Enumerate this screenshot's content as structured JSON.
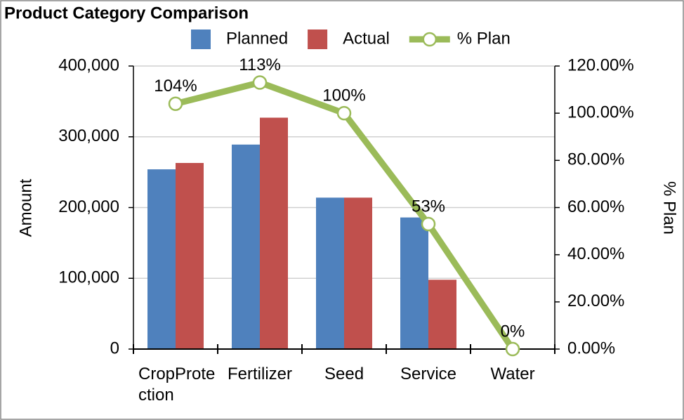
{
  "chart_data": {
    "type": "bar",
    "title": "Product Category Comparison",
    "categories": [
      "CropProtection",
      "Fertilizer",
      "Seed",
      "Service",
      "Water"
    ],
    "series": [
      {
        "name": "Planned",
        "color": "#4f81bd",
        "values": [
          254000,
          289000,
          214000,
          186000,
          500
        ]
      },
      {
        "name": "Actual",
        "color": "#c0504d",
        "values": [
          263000,
          327000,
          214000,
          98000,
          0
        ]
      },
      {
        "name": "% Plan",
        "type": "line",
        "axis": "y2",
        "color": "#9bbb59",
        "values": [
          104,
          113,
          100,
          53,
          0
        ],
        "value_labels": [
          "104%",
          "113%",
          "100%",
          "53%",
          "0%"
        ]
      }
    ],
    "ylabel": "Amount",
    "y2label": "% Plan",
    "ylim": [
      0,
      400000
    ],
    "yticks": [
      0,
      {
        "value": 100000,
        "label": "100,000"
      },
      {
        "value": 200000,
        "label": "200,000"
      },
      {
        "value": 300000,
        "label": "300,000"
      },
      {
        "value": 400000,
        "label": "400,000"
      }
    ],
    "y2lim": [
      0,
      120
    ],
    "y2ticks": [
      {
        "value": 0,
        "label": "0.00%"
      },
      {
        "value": 20,
        "label": "20.00%"
      },
      {
        "value": 40,
        "label": "40.00%"
      },
      {
        "value": 60,
        "label": "60.00%"
      },
      {
        "value": 80,
        "label": "80.00%"
      },
      {
        "value": 100,
        "label": "100.00%"
      },
      {
        "value": 120,
        "label": "120.00%"
      }
    ],
    "grid": true,
    "legend": "top"
  }
}
